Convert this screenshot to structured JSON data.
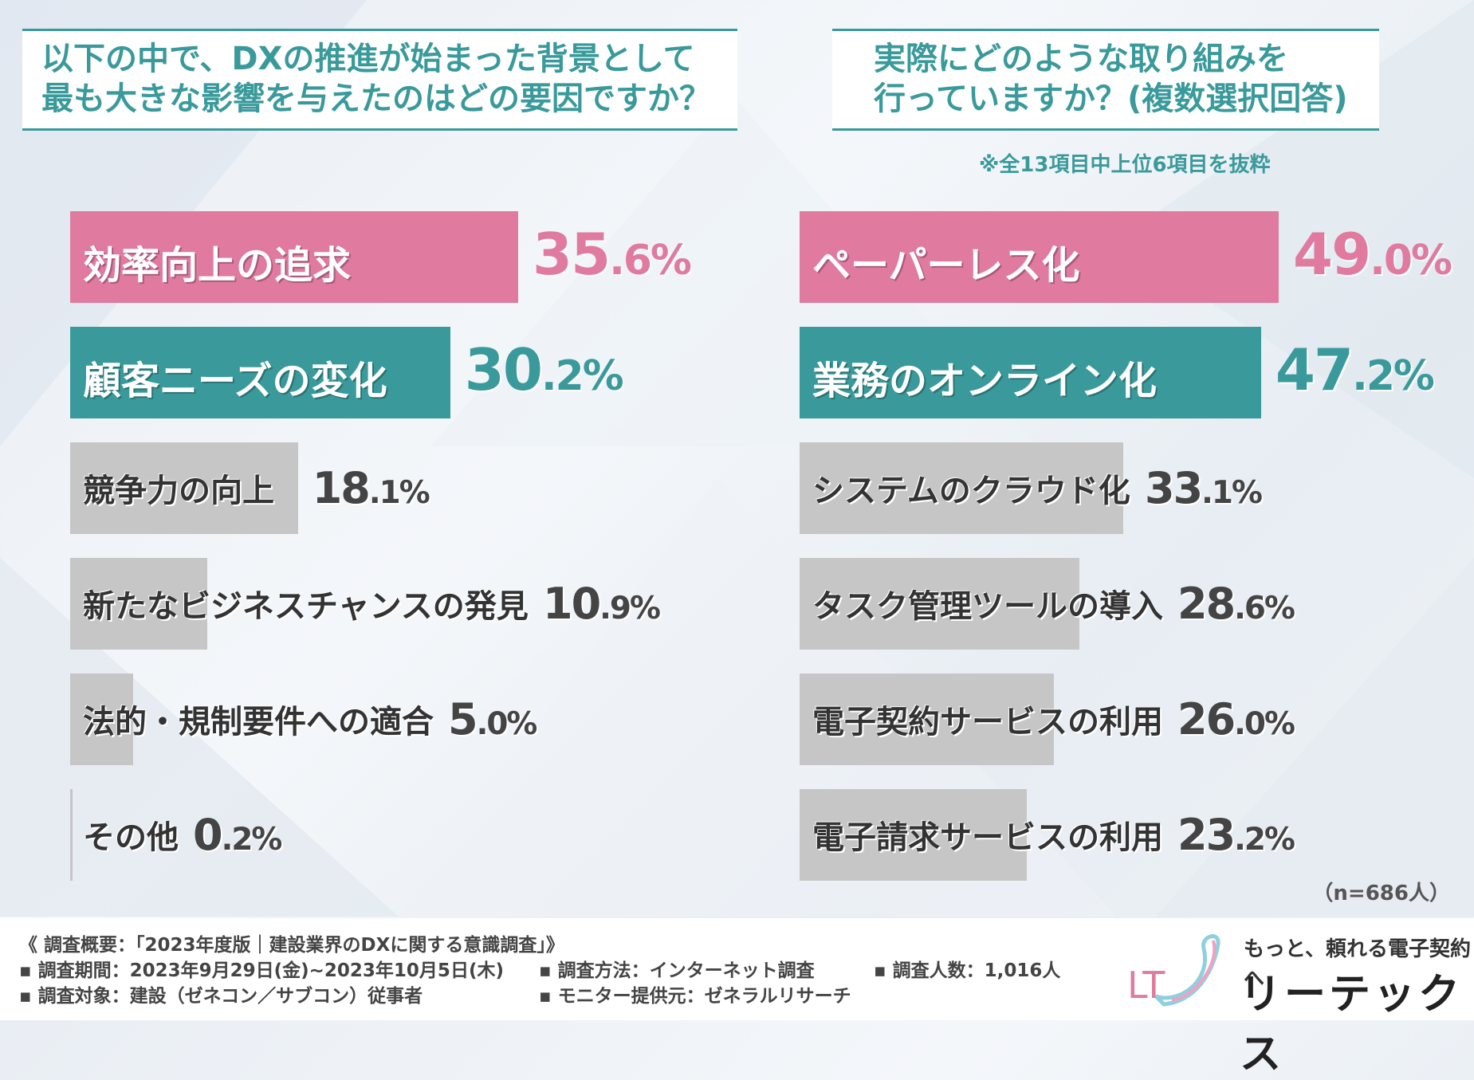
{
  "left": {
    "question": [
      "以下の中で、DXの推進が始まった背景として",
      "最も大きな影響を与えたのはどの要因ですか？"
    ]
  },
  "right": {
    "question": [
      "実際にどのような取り組みを",
      "行っていますか？(複数選択回答)"
    ],
    "note": "※全13項目中上位6項目を抜粋"
  },
  "sample": "（n=686人）",
  "colors": {
    "pink": "#e07a9e",
    "teal": "#3a9a9b",
    "gray": "#c6c6c6"
  },
  "chart_data": [
    {
      "type": "bar",
      "orientation": "horizontal",
      "categories": [
        "効率向上の追求",
        "顧客ニーズの変化",
        "競争力の向上",
        "新たなビジネスチャンスの発見",
        "法的・規制要件への適合",
        "その他"
      ],
      "values": [
        35.6,
        30.2,
        18.1,
        10.9,
        5.0,
        0.2
      ],
      "value_labels": [
        [
          "35",
          ".6%"
        ],
        [
          "30",
          ".2%"
        ],
        [
          "18",
          ".1%"
        ],
        [
          "10",
          ".9%"
        ],
        [
          "5",
          ".0%"
        ],
        [
          "0",
          ".2%"
        ]
      ],
      "xlim": [
        0,
        35.6
      ],
      "grid": false
    },
    {
      "type": "bar",
      "orientation": "horizontal",
      "categories": [
        "ペーパーレス化",
        "業務のオンライン化",
        "システムのクラウド化",
        "タスク管理ツールの導入",
        "電子契約サービスの利用",
        "電子請求サービスの利用"
      ],
      "values": [
        49.0,
        47.2,
        33.1,
        28.6,
        26.0,
        23.2
      ],
      "value_labels": [
        [
          "49",
          ".0%"
        ],
        [
          "47",
          ".2%"
        ],
        [
          "33",
          ".1%"
        ],
        [
          "28",
          ".6%"
        ],
        [
          "26",
          ".0%"
        ],
        [
          "23",
          ".2%"
        ]
      ],
      "xlim": [
        0,
        49.0
      ],
      "grid": false
    }
  ],
  "footer": {
    "title": "《 調査概要：「2023年度版｜建設業界のDXに関する意識調査」》",
    "period": "▪ 調査期間：2023年9月29日(金)~2023年10月5日(木)",
    "target": "▪ 調査対象：建設（ゼネコン／サブコン）従事者",
    "method": "▪ 調査方法：インターネット調査",
    "provider": "▪ モニター提供元：ゼネラルリサーチ",
    "count": "▪ 調査人数：1,016人"
  },
  "brand": {
    "tagline": "もっと、頼れる電子契約へ",
    "name": "リーテックス",
    "logo_text": "LT"
  }
}
